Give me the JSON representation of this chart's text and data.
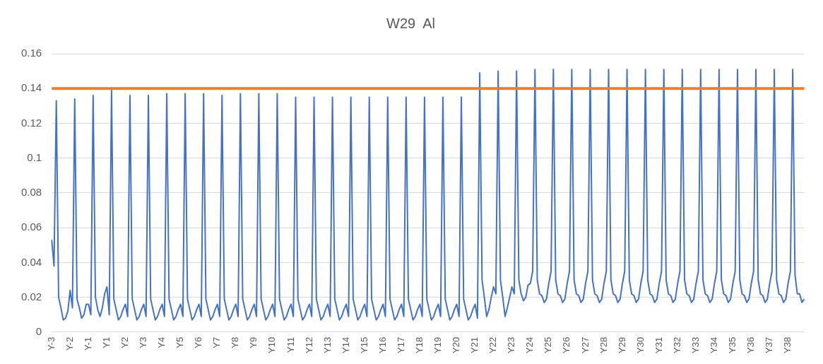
{
  "chart_data": {
    "type": "line",
    "title": "W29  Al",
    "categories": [
      "Y-3",
      null,
      null,
      null,
      null,
      null,
      null,
      null,
      "Y-2",
      null,
      null,
      null,
      null,
      null,
      null,
      null,
      "Y-1",
      null,
      null,
      null,
      null,
      null,
      null,
      null,
      "Y1",
      null,
      null,
      null,
      null,
      null,
      null,
      null,
      "Y2",
      null,
      null,
      null,
      null,
      null,
      null,
      null,
      "Y3",
      null,
      null,
      null,
      null,
      null,
      null,
      null,
      "Y4",
      null,
      null,
      null,
      null,
      null,
      null,
      null,
      "Y5",
      null,
      null,
      null,
      null,
      null,
      null,
      null,
      "Y6",
      null,
      null,
      null,
      null,
      null,
      null,
      null,
      "Y7",
      null,
      null,
      null,
      null,
      null,
      null,
      null,
      "Y8",
      null,
      null,
      null,
      null,
      null,
      null,
      null,
      "Y9",
      null,
      null,
      null,
      null,
      null,
      null,
      null,
      "Y10",
      null,
      null,
      null,
      null,
      null,
      null,
      null,
      "Y11",
      null,
      null,
      null,
      null,
      null,
      null,
      null,
      "Y12",
      null,
      null,
      null,
      null,
      null,
      null,
      null,
      "Y13",
      null,
      null,
      null,
      null,
      null,
      null,
      null,
      "Y14",
      null,
      null,
      null,
      null,
      null,
      null,
      null,
      "Y15",
      null,
      null,
      null,
      null,
      null,
      null,
      null,
      "Y16",
      null,
      null,
      null,
      null,
      null,
      null,
      null,
      "Y17",
      null,
      null,
      null,
      null,
      null,
      null,
      null,
      "Y18",
      null,
      null,
      null,
      null,
      null,
      null,
      null,
      "Y19",
      null,
      null,
      null,
      null,
      null,
      null,
      null,
      "Y20",
      null,
      null,
      null,
      null,
      null,
      null,
      null,
      "Y21",
      null,
      null,
      null,
      null,
      null,
      null,
      null,
      "Y22",
      null,
      null,
      null,
      null,
      null,
      null,
      null,
      "Y23",
      null,
      null,
      null,
      null,
      null,
      null,
      null,
      "Y24",
      null,
      null,
      null,
      null,
      null,
      null,
      null,
      "Y25",
      null,
      null,
      null,
      null,
      null,
      null,
      null,
      "Y26",
      null,
      null,
      null,
      null,
      null,
      null,
      null,
      "Y27",
      null,
      null,
      null,
      null,
      null,
      null,
      null,
      "Y28",
      null,
      null,
      null,
      null,
      null,
      null,
      null,
      "Y29",
      null,
      null,
      null,
      null,
      null,
      null,
      null,
      "Y30",
      null,
      null,
      null,
      null,
      null,
      null,
      null,
      "Y31",
      null,
      null,
      null,
      null,
      null,
      null,
      null,
      "Y32",
      null,
      null,
      null,
      null,
      null,
      null,
      null,
      "Y33",
      null,
      null,
      null,
      null,
      null,
      null,
      null,
      "Y34",
      null,
      null,
      null,
      null,
      null,
      null,
      null,
      "Y35",
      null,
      null,
      null,
      null,
      null,
      null,
      null,
      "Y36",
      null,
      null,
      null,
      null,
      null,
      null,
      null,
      "Y37",
      null,
      null,
      null,
      null,
      null,
      null,
      null,
      "Y38",
      null,
      null,
      null,
      null,
      null,
      null,
      null
    ],
    "series": [
      {
        "color": "#4472c4",
        "values": [
          0.053,
          0.038,
          0.133,
          0.02,
          0.014,
          0.007,
          0.008,
          0.012,
          0.024,
          0.014,
          0.134,
          0.019,
          0.014,
          0.008,
          0.01,
          0.016,
          0.016,
          0.01,
          0.136,
          0.02,
          0.013,
          0.009,
          0.014,
          0.022,
          0.026,
          0.01,
          0.139,
          0.019,
          0.013,
          0.007,
          0.009,
          0.013,
          0.016,
          0.009,
          0.136,
          0.019,
          0.013,
          0.007,
          0.009,
          0.013,
          0.016,
          0.009,
          0.136,
          0.019,
          0.013,
          0.007,
          0.009,
          0.013,
          0.016,
          0.009,
          0.137,
          0.019,
          0.013,
          0.007,
          0.009,
          0.013,
          0.016,
          0.009,
          0.137,
          0.019,
          0.013,
          0.007,
          0.009,
          0.013,
          0.016,
          0.009,
          0.137,
          0.019,
          0.013,
          0.007,
          0.009,
          0.013,
          0.016,
          0.009,
          0.136,
          0.019,
          0.013,
          0.007,
          0.009,
          0.013,
          0.016,
          0.009,
          0.137,
          0.019,
          0.013,
          0.007,
          0.009,
          0.013,
          0.016,
          0.009,
          0.137,
          0.019,
          0.013,
          0.007,
          0.009,
          0.013,
          0.016,
          0.009,
          0.137,
          0.019,
          0.013,
          0.007,
          0.009,
          0.013,
          0.016,
          0.009,
          0.135,
          0.019,
          0.013,
          0.007,
          0.009,
          0.013,
          0.016,
          0.009,
          0.135,
          0.019,
          0.013,
          0.007,
          0.009,
          0.013,
          0.016,
          0.009,
          0.135,
          0.019,
          0.013,
          0.007,
          0.009,
          0.013,
          0.016,
          0.009,
          0.135,
          0.019,
          0.013,
          0.007,
          0.009,
          0.013,
          0.016,
          0.009,
          0.135,
          0.019,
          0.013,
          0.007,
          0.009,
          0.013,
          0.016,
          0.009,
          0.135,
          0.019,
          0.013,
          0.007,
          0.009,
          0.013,
          0.016,
          0.009,
          0.135,
          0.019,
          0.013,
          0.007,
          0.009,
          0.013,
          0.016,
          0.009,
          0.135,
          0.019,
          0.013,
          0.007,
          0.009,
          0.013,
          0.016,
          0.009,
          0.135,
          0.019,
          0.013,
          0.007,
          0.009,
          0.013,
          0.016,
          0.009,
          0.135,
          0.019,
          0.013,
          0.007,
          0.009,
          0.013,
          0.016,
          0.008,
          0.149,
          0.03,
          0.02,
          0.009,
          0.013,
          0.02,
          0.026,
          0.022,
          0.15,
          0.03,
          0.02,
          0.009,
          0.014,
          0.02,
          0.026,
          0.022,
          0.15,
          0.03,
          0.022,
          0.018,
          0.02,
          0.027,
          0.028,
          0.035,
          0.151,
          0.03,
          0.022,
          0.021,
          0.017,
          0.019,
          0.028,
          0.035,
          0.151,
          0.03,
          0.022,
          0.021,
          0.017,
          0.019,
          0.028,
          0.035,
          0.151,
          0.03,
          0.022,
          0.021,
          0.017,
          0.019,
          0.028,
          0.035,
          0.151,
          0.03,
          0.022,
          0.021,
          0.017,
          0.019,
          0.028,
          0.035,
          0.151,
          0.03,
          0.022,
          0.021,
          0.017,
          0.019,
          0.028,
          0.035,
          0.151,
          0.03,
          0.022,
          0.021,
          0.017,
          0.019,
          0.028,
          0.035,
          0.151,
          0.03,
          0.022,
          0.021,
          0.017,
          0.019,
          0.028,
          0.035,
          0.151,
          0.03,
          0.022,
          0.021,
          0.017,
          0.019,
          0.028,
          0.035,
          0.151,
          0.03,
          0.022,
          0.021,
          0.017,
          0.019,
          0.028,
          0.035,
          0.151,
          0.03,
          0.022,
          0.021,
          0.017,
          0.019,
          0.028,
          0.035,
          0.151,
          0.03,
          0.022,
          0.021,
          0.017,
          0.019,
          0.028,
          0.035,
          0.151,
          0.03,
          0.022,
          0.021,
          0.017,
          0.019,
          0.028,
          0.035,
          0.151,
          0.03,
          0.022,
          0.021,
          0.017,
          0.019,
          0.028,
          0.035,
          0.151,
          0.03,
          0.022,
          0.021,
          0.017,
          0.019,
          0.028,
          0.035,
          0.151,
          0.033,
          0.022,
          0.022,
          0.017,
          0.019
        ]
      }
    ],
    "ylim": [
      0,
      0.16
    ],
    "yticks": [
      0,
      0.02,
      0.04,
      0.06,
      0.08,
      0.1,
      0.12,
      0.14,
      0.16
    ],
    "ref_lines": [
      {
        "axis": "y",
        "value": 0.14,
        "color": "#ed7d31"
      }
    ],
    "grid": "y",
    "legend": false,
    "marker": "none",
    "line_style": "solid"
  }
}
